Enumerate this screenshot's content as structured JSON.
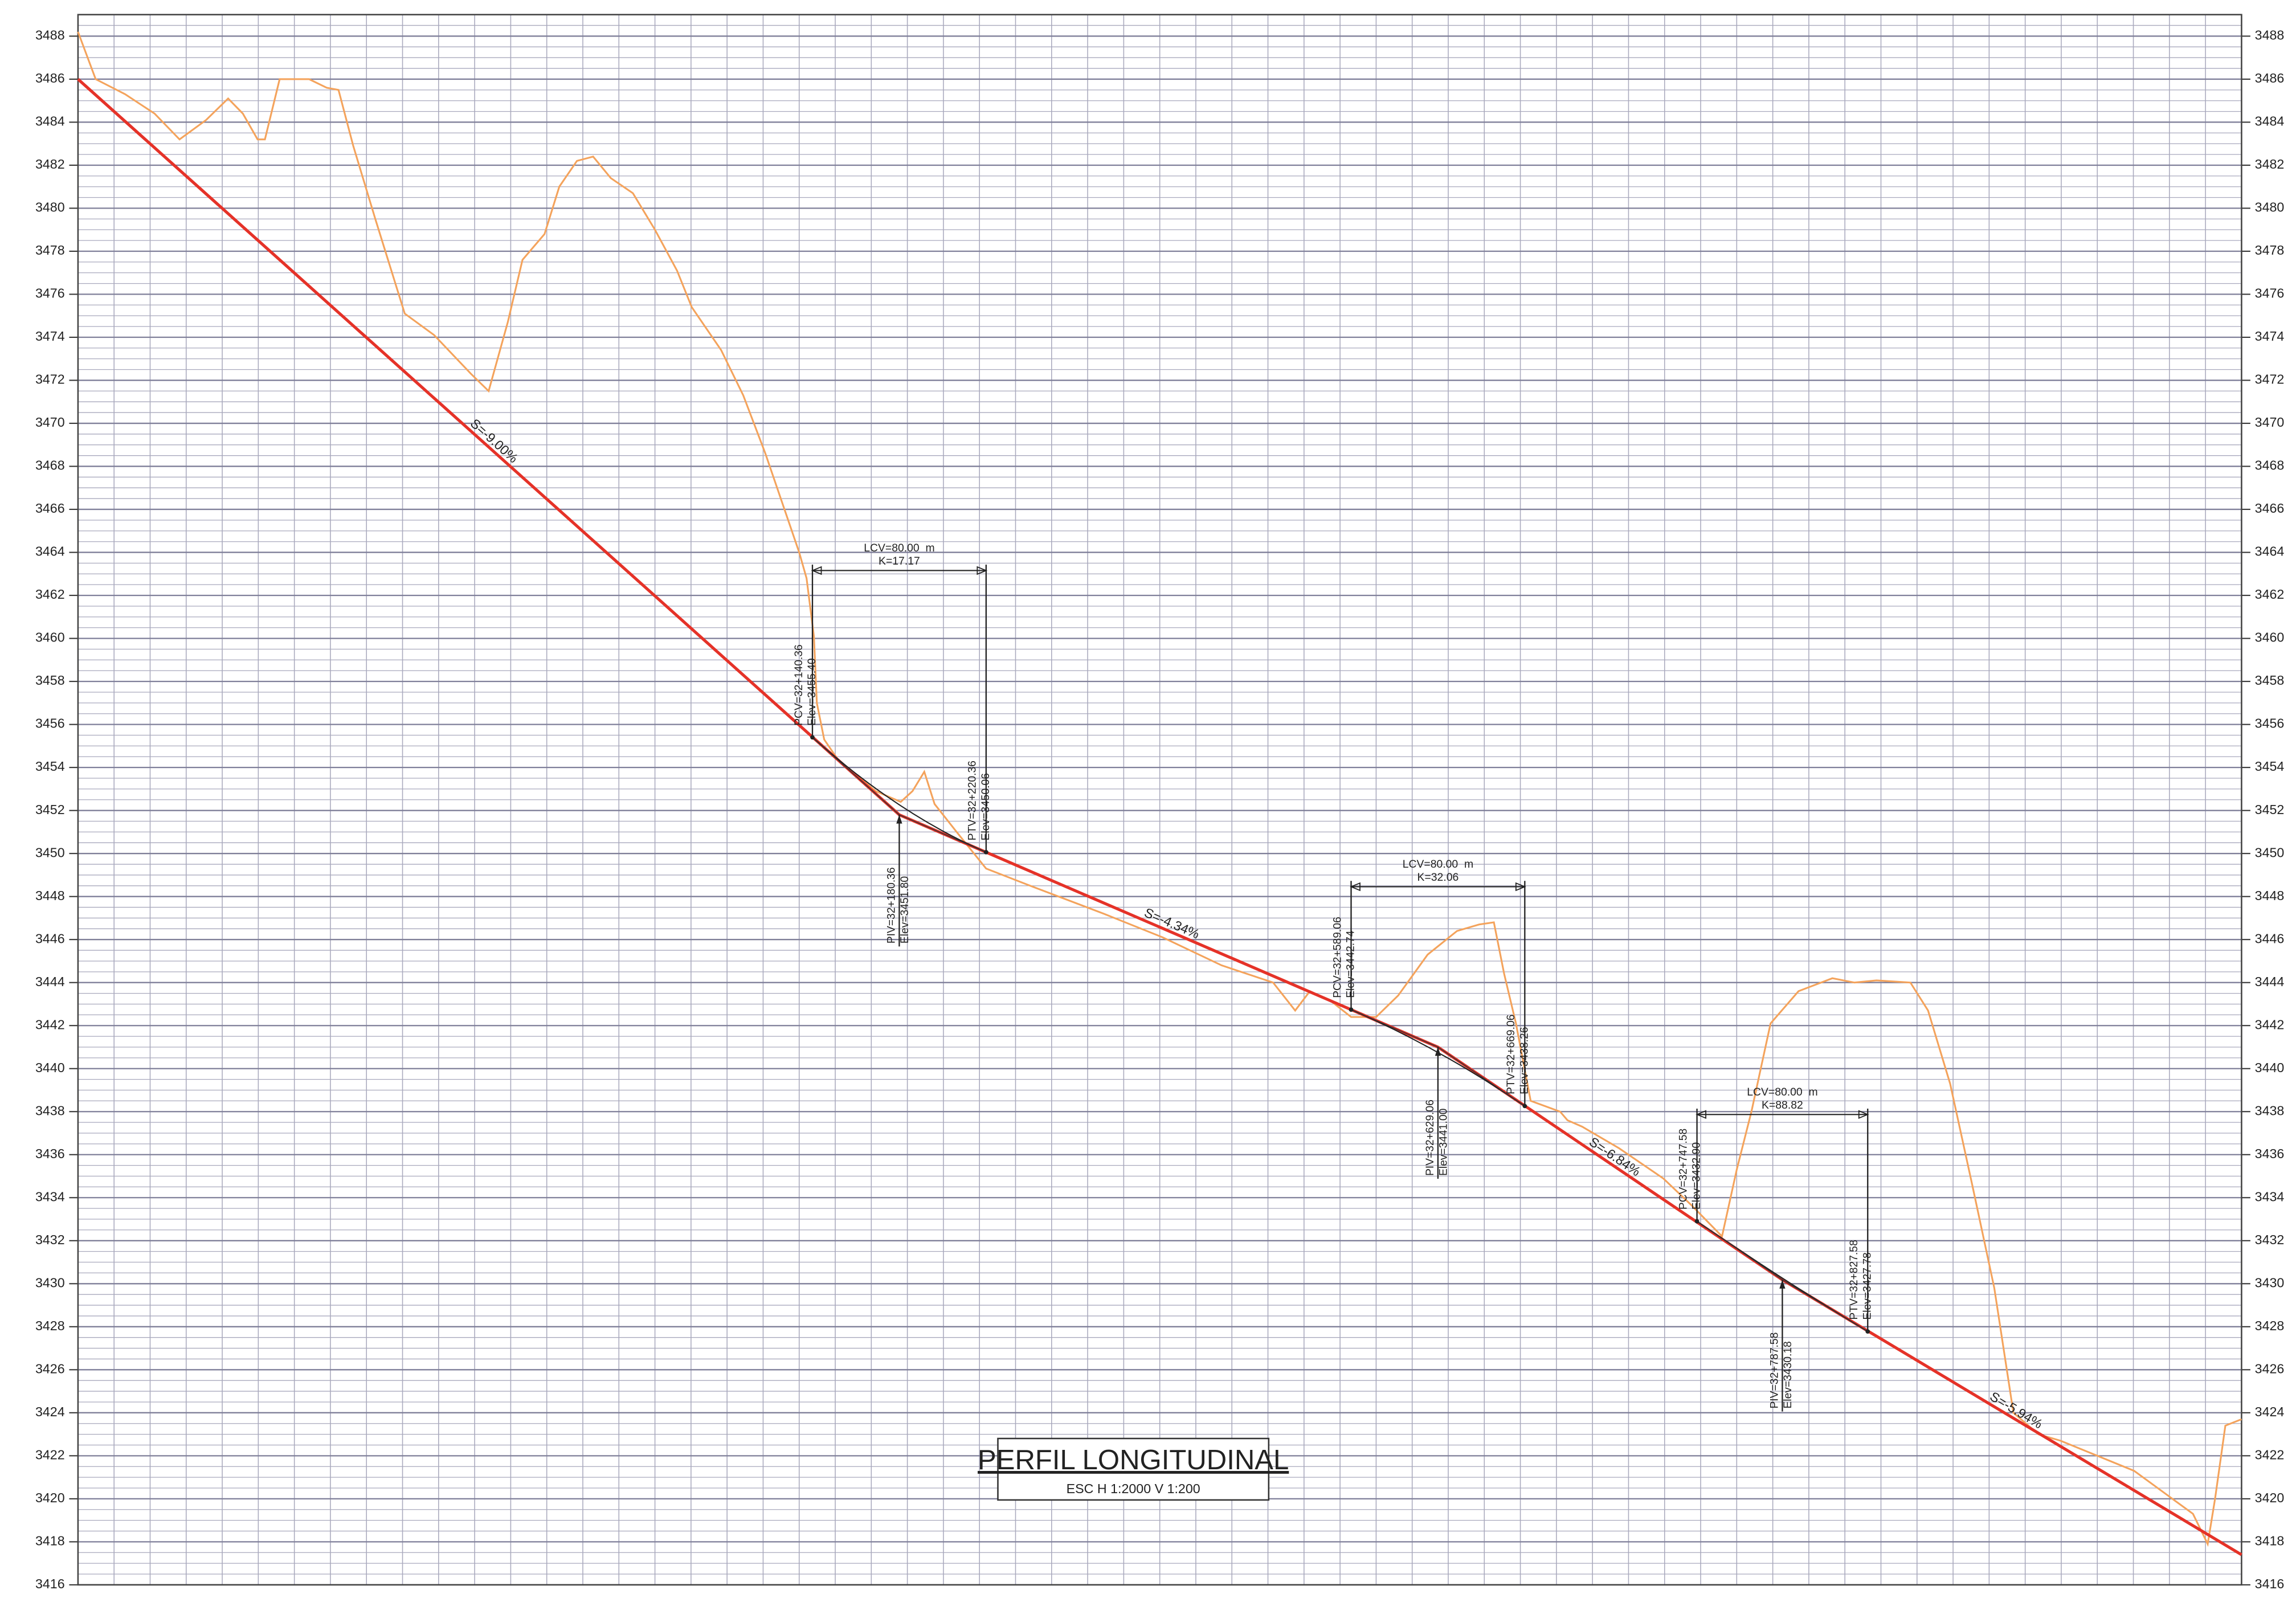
{
  "chart_data": {
    "type": "line",
    "title": "PERFIL LONGITUDINAL",
    "subtitle": "ESC H 1:2000 V 1:200",
    "xlim": [
      0,
      1470
    ],
    "ylim": [
      3416,
      3489
    ],
    "yticks": [
      3416,
      3418,
      3420,
      3422,
      3424,
      3426,
      3428,
      3430,
      3432,
      3434,
      3436,
      3438,
      3440,
      3442,
      3444,
      3446,
      3448,
      3450,
      3452,
      3454,
      3456,
      3458,
      3460,
      3462,
      3464,
      3466,
      3468,
      3470,
      3472,
      3474,
      3476,
      3478,
      3480,
      3482,
      3484,
      3486,
      3488
    ],
    "grid": true,
    "minor_grid_step": 0.5,
    "x_grid_step": 24.5,
    "grid_color": "#a9a9bd",
    "series": [
      {
        "color": "#f4a35c",
        "x": [
          0,
          12,
          32,
          52,
          69,
          87,
          102,
          112,
          122,
          127,
          137,
          157,
          169,
          177,
          187,
          202,
          222,
          242,
          267,
          279,
          292,
          302,
          317,
          327,
          339,
          350,
          362,
          377,
          392,
          407,
          417,
          437,
          452,
          467,
          477,
          490,
          495,
          500,
          502,
          507,
          517,
          542,
          559,
          567,
          575,
          582,
          597,
          617,
          647,
          697,
          737,
          777,
          812,
          827,
          837,
          852,
          865,
          882,
          897,
          917,
          937,
          952,
          962,
          969,
          977,
          987,
          1007,
          1012,
          1022,
          1047,
          1077,
          1097,
          1117,
          1127,
          1137,
          1150,
          1169,
          1192,
          1207,
          1222,
          1245,
          1257,
          1272,
          1287,
          1302,
          1315,
          1332,
          1347,
          1397,
          1437,
          1447,
          1452,
          1459,
          1470
        ],
        "values": [
          3488.2,
          3486.0,
          3485.3,
          3484.4,
          3483.2,
          3484.1,
          3485.1,
          3484.4,
          3483.2,
          3483.2,
          3486.0,
          3486.0,
          3485.6,
          3485.5,
          3482.9,
          3479.5,
          3475.1,
          3474.1,
          3472.3,
          3471.5,
          3474.7,
          3477.6,
          3478.8,
          3481.0,
          3482.2,
          3482.4,
          3481.4,
          3480.7,
          3479.0,
          3477.1,
          3475.4,
          3473.4,
          3471.3,
          3468.6,
          3466.6,
          3464.0,
          3462.8,
          3460.1,
          3457.0,
          3455.3,
          3454.3,
          3452.9,
          3452.4,
          3452.9,
          3453.8,
          3452.3,
          3451.0,
          3449.3,
          3448.5,
          3447.2,
          3446.1,
          3444.8,
          3444.0,
          3442.7,
          3443.6,
          3443.1,
          3442.4,
          3442.4,
          3443.4,
          3445.3,
          3446.4,
          3446.7,
          3446.8,
          3444.4,
          3442.1,
          3438.5,
          3438.0,
          3437.6,
          3437.3,
          3436.3,
          3434.9,
          3433.6,
          3432.2,
          3435.3,
          3438.0,
          3442.1,
          3443.6,
          3444.2,
          3444.0,
          3444.1,
          3444.0,
          3442.7,
          3439.3,
          3434.6,
          3429.8,
          3424.0,
          3423.0,
          3422.7,
          3421.3,
          3419.3,
          3417.9,
          3420.0,
          3423.4,
          3423.7
        ]
      },
      {
        "color": "#e53228",
        "x": [
          0,
          558,
          924,
          1158,
          1470
        ],
        "values": [
          3486.0,
          3451.8,
          3441.0,
          3430.18,
          3417.4
        ],
        "grade_labels": [
          "S=-9.00%",
          "S=-4.34%",
          "S=-6.84%",
          "S=-5.94%"
        ]
      }
    ],
    "vertical_curves": [
      {
        "lcv": "LCV=80.00  m",
        "k": "K=17.17",
        "pcv": {
          "station": "PCV=32+140.36",
          "elev_label": "Elev=3455.40",
          "x": 499,
          "elev": 3455.4
        },
        "piv": {
          "station": "PIV=32+180.36",
          "elev_label": "Elev=3451.80",
          "x": 558,
          "elev": 3451.8
        },
        "ptv": {
          "station": "PTV=32+220.36",
          "elev_label": "Elev=3450.06",
          "x": 617,
          "elev": 3450.06
        }
      },
      {
        "lcv": "LCV=80.00  m",
        "k": "K=32.06",
        "pcv": {
          "station": "PCV=32+589.06",
          "elev_label": "Elev=3442.74",
          "x": 865,
          "elev": 3442.74
        },
        "piv": {
          "station": "PIV=32+629.06",
          "elev_label": "Elev=3441.00",
          "x": 924,
          "elev": 3441.0
        },
        "ptv": {
          "station": "PTV=32+669.06",
          "elev_label": "Elev=3438.26",
          "x": 983,
          "elev": 3438.26
        }
      },
      {
        "lcv": "LCV=80.00  m",
        "k": "K=88.82",
        "pcv": {
          "station": "PCV=32+747.58",
          "elev_label": "Elev=3432.90",
          "x": 1100,
          "elev": 3432.9
        },
        "piv": {
          "station": "PIV=32+787.58",
          "elev_label": "Elev=3430.18",
          "x": 1158,
          "elev": 3430.18
        },
        "ptv": {
          "station": "PTV=32+827.58",
          "elev_label": "Elev=3427.78",
          "x": 1216,
          "elev": 3427.78
        }
      }
    ]
  }
}
